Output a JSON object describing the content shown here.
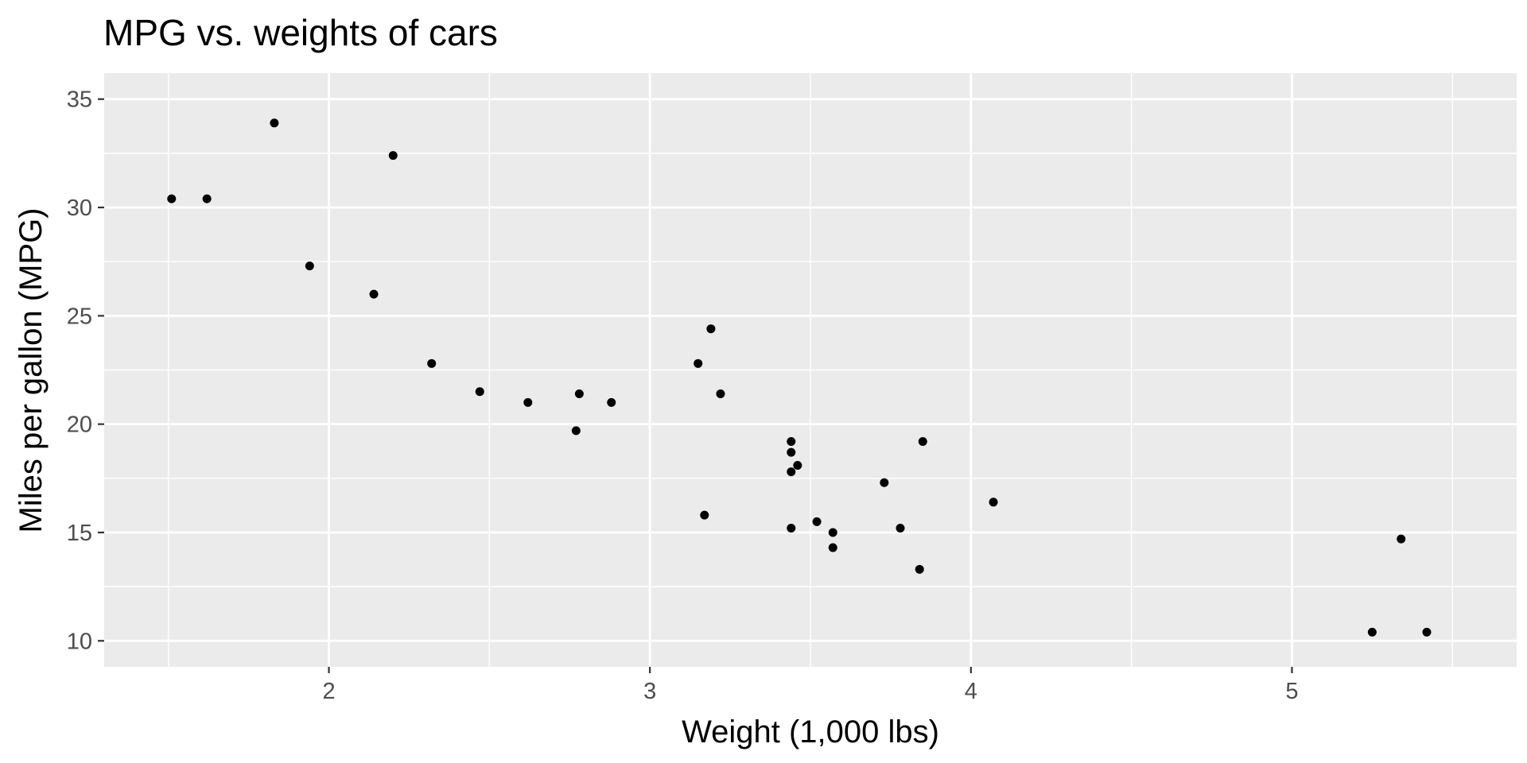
{
  "colors": {
    "panel_background": "#EBEBEB",
    "grid_major": "#FFFFFF",
    "grid_minor": "#FFFFFF",
    "point": "#000000",
    "tick": "#333333",
    "tick_label": "#4D4D4D"
  },
  "chart_data": {
    "type": "scatter",
    "title": "MPG vs. weights of cars",
    "xlabel": "Weight (1,000 lbs)",
    "ylabel": "Miles per gallon (MPG)",
    "xlim": [
      1.3,
      5.7
    ],
    "ylim": [
      8.8,
      36.2
    ],
    "x_ticks": [
      2,
      3,
      4,
      5
    ],
    "x_tick_labels": [
      "2",
      "3",
      "4",
      "5"
    ],
    "x_minor_ticks": [
      1.5,
      2.5,
      3.5,
      4.5,
      5.5
    ],
    "y_ticks": [
      10,
      15,
      20,
      25,
      30,
      35
    ],
    "y_tick_labels": [
      "10",
      "15",
      "20",
      "25",
      "30",
      "35"
    ],
    "y_minor_ticks": [
      12.5,
      17.5,
      22.5,
      27.5,
      32.5
    ],
    "grid": true,
    "legend": "none",
    "points": [
      {
        "x": 1.51,
        "y": 30.4
      },
      {
        "x": 1.62,
        "y": 30.4
      },
      {
        "x": 1.83,
        "y": 33.9
      },
      {
        "x": 1.94,
        "y": 27.3
      },
      {
        "x": 2.14,
        "y": 26.0
      },
      {
        "x": 2.2,
        "y": 32.4
      },
      {
        "x": 2.32,
        "y": 22.8
      },
      {
        "x": 2.47,
        "y": 21.5
      },
      {
        "x": 2.62,
        "y": 21.0
      },
      {
        "x": 2.77,
        "y": 19.7
      },
      {
        "x": 2.78,
        "y": 21.4
      },
      {
        "x": 2.88,
        "y": 21.0
      },
      {
        "x": 3.15,
        "y": 22.8
      },
      {
        "x": 3.17,
        "y": 15.8
      },
      {
        "x": 3.19,
        "y": 24.4
      },
      {
        "x": 3.22,
        "y": 21.4
      },
      {
        "x": 3.44,
        "y": 15.2
      },
      {
        "x": 3.44,
        "y": 17.8
      },
      {
        "x": 3.44,
        "y": 18.7
      },
      {
        "x": 3.44,
        "y": 19.2
      },
      {
        "x": 3.46,
        "y": 18.1
      },
      {
        "x": 3.52,
        "y": 15.5
      },
      {
        "x": 3.57,
        "y": 14.3
      },
      {
        "x": 3.57,
        "y": 15.0
      },
      {
        "x": 3.73,
        "y": 17.3
      },
      {
        "x": 3.78,
        "y": 15.2
      },
      {
        "x": 3.84,
        "y": 13.3
      },
      {
        "x": 3.85,
        "y": 19.2
      },
      {
        "x": 4.07,
        "y": 16.4
      },
      {
        "x": 5.25,
        "y": 10.4
      },
      {
        "x": 5.34,
        "y": 14.7
      },
      {
        "x": 5.42,
        "y": 10.4
      }
    ]
  }
}
